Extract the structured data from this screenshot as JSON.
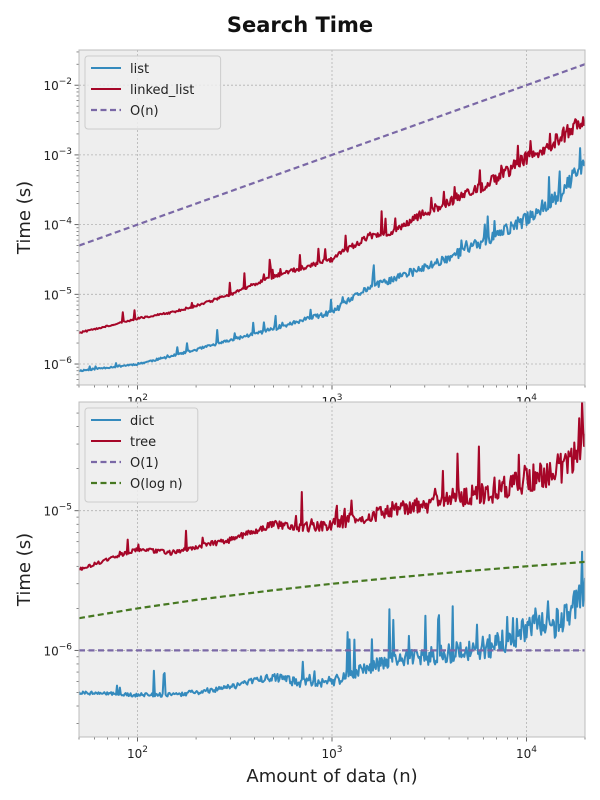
{
  "figure": {
    "title": "Search Time"
  },
  "chart_data": [
    {
      "type": "line",
      "xlabel": "",
      "ylabel": "Time (s)",
      "xscale": "log",
      "yscale": "log",
      "xlim": [
        50,
        20000
      ],
      "ylim": [
        5e-07,
        0.032
      ],
      "grid": true,
      "legend_position": "upper-left",
      "x_ticks": [
        {
          "mant": "10",
          "exp": "2"
        },
        {
          "mant": "10",
          "exp": "3"
        },
        {
          "mant": "10",
          "exp": "4"
        }
      ],
      "y_ticks": [
        {
          "mant": "10",
          "exp": "−6"
        },
        {
          "mant": "10",
          "exp": "−5"
        },
        {
          "mant": "10",
          "exp": "−4"
        },
        {
          "mant": "10",
          "exp": "−3"
        },
        {
          "mant": "10",
          "exp": "−2"
        }
      ],
      "series": [
        {
          "name": "list",
          "color": "#348abd",
          "dashed": false,
          "x": [
            50,
            100,
            150,
            200,
            300,
            500,
            700,
            1000,
            1500,
            2000,
            3000,
            5000,
            7000,
            10000,
            15000,
            20000
          ],
          "y": [
            8e-07,
            1e-06,
            1.3e-06,
            1.6e-06,
            2.2e-06,
            3.2e-06,
            4.2e-06,
            5.5e-06,
            1.2e-05,
            1.6e-05,
            2.4e-05,
            4.5e-05,
            7e-05,
            0.00012,
            0.00028,
            0.0008
          ]
        },
        {
          "name": "linked_list",
          "color": "#a60628",
          "dashed": false,
          "x": [
            50,
            100,
            150,
            200,
            300,
            500,
            700,
            1000,
            1500,
            2000,
            3000,
            5000,
            7000,
            10000,
            15000,
            20000
          ],
          "y": [
            2.8e-06,
            4.5e-06,
            5.5e-06,
            6.8e-06,
            1e-05,
            1.8e-05,
            2.4e-05,
            3.2e-05,
            6.5e-05,
            8e-05,
            0.00015,
            0.00028,
            0.00045,
            0.0009,
            0.0018,
            0.0035
          ]
        },
        {
          "name": "O(n)",
          "color": "#7a68a6",
          "dashed": true,
          "x": [
            50,
            20000
          ],
          "y": [
            5e-05,
            0.02
          ]
        }
      ]
    },
    {
      "type": "line",
      "xlabel": "Amount of data (n)",
      "ylabel": "Time (s)",
      "xscale": "log",
      "yscale": "log",
      "xlim": [
        50,
        20000
      ],
      "ylim": [
        2.4e-07,
        6e-05
      ],
      "grid": true,
      "legend_position": "upper-left",
      "x_ticks": [
        {
          "mant": "10",
          "exp": "2"
        },
        {
          "mant": "10",
          "exp": "3"
        },
        {
          "mant": "10",
          "exp": "4"
        }
      ],
      "y_ticks": [
        {
          "mant": "10",
          "exp": "−6"
        },
        {
          "mant": "10",
          "exp": "−5"
        }
      ],
      "series": [
        {
          "name": "dict",
          "color": "#348abd",
          "dashed": false,
          "x": [
            50,
            100,
            150,
            200,
            300,
            500,
            700,
            1000,
            1500,
            2000,
            3000,
            5000,
            7000,
            10000,
            15000,
            20000
          ],
          "y": [
            5e-07,
            4.8e-07,
            4.8e-07,
            5e-07,
            5.5e-07,
            6.5e-07,
            5.8e-07,
            6e-07,
            7.5e-07,
            8.5e-07,
            9e-07,
            1e-06,
            1.1e-06,
            1.4e-06,
            1.6e-06,
            2.5e-06
          ]
        },
        {
          "name": "tree",
          "color": "#a60628",
          "dashed": false,
          "x": [
            50,
            100,
            150,
            200,
            300,
            500,
            700,
            1000,
            1500,
            2000,
            3000,
            5000,
            7000,
            10000,
            15000,
            20000
          ],
          "y": [
            3.8e-06,
            5.3e-06,
            5e-06,
            5.5e-06,
            6.2e-06,
            8e-06,
            7.5e-06,
            8e-06,
            9e-06,
            1e-05,
            1.1e-05,
            1.3e-05,
            1.4e-05,
            1.7e-05,
            2e-05,
            2.8e-05
          ]
        },
        {
          "name": "O(1)",
          "color": "#7a68a6",
          "dashed": true,
          "x": [
            50,
            20000
          ],
          "y": [
            1e-06,
            1e-06
          ]
        },
        {
          "name": "O(log n)",
          "color": "#467821",
          "dashed": true,
          "x": [
            50,
            100,
            200,
            500,
            1000,
            2000,
            5000,
            10000,
            20000
          ],
          "y": [
            1.7e-06,
            2e-06,
            2.3e-06,
            2.7e-06,
            3e-06,
            3.3e-06,
            3.7e-06,
            4e-06,
            4.3e-06
          ]
        }
      ]
    }
  ]
}
